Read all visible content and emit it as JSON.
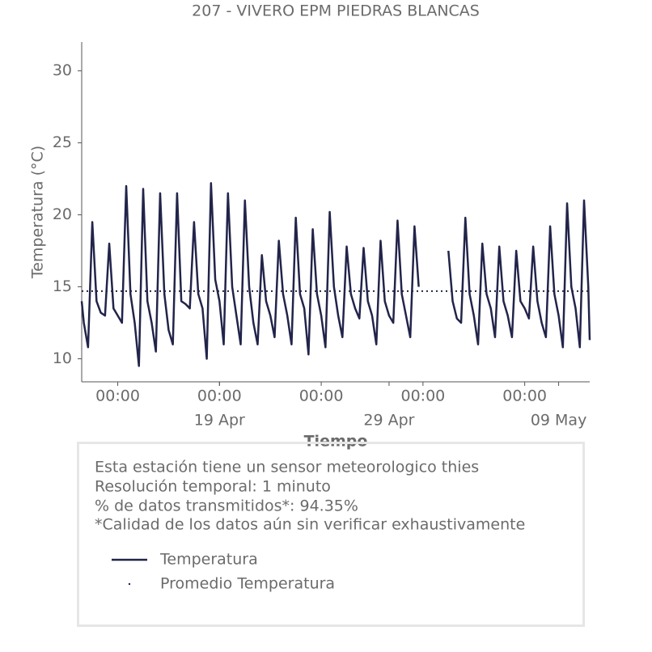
{
  "chart_data": {
    "type": "line",
    "title": "207 - VIVERO EPM PIEDRAS BLANCAS",
    "xlabel": "Tiempo",
    "ylabel": "Temperatura (°C)",
    "xlim": [
      "Apr 10 21:00",
      "May 10 20:00"
    ],
    "ylim": [
      8.4,
      32
    ],
    "yticks": [
      10,
      15,
      20,
      25,
      30
    ],
    "xticks": [
      {
        "value": "Apr 13 00:00",
        "label": "00:00"
      },
      {
        "value": "Apr 19 00:00",
        "label": "00:00"
      },
      {
        "value": "Apr 25 00:00",
        "label": "00:00"
      },
      {
        "value": "May 01 00:00",
        "label": "00:00"
      },
      {
        "value": "May 07 00:00",
        "label": "00:00"
      }
    ],
    "xticks_major": [
      {
        "value": "Apr 19 00:00",
        "label": "19 Apr"
      },
      {
        "value": "Apr 29 00:00",
        "label": "29 Apr"
      },
      {
        "value": "May 09 00:00",
        "label": "09 May"
      }
    ],
    "x": [
      "Apr 10 21:00",
      "Apr 11 00:00",
      "Apr 11 06:00",
      "Apr 11 12:00",
      "Apr 11 18:00",
      "Apr 12 00:00",
      "Apr 12 06:00",
      "Apr 12 12:00",
      "Apr 12 18:00",
      "Apr 13 00:00",
      "Apr 13 06:00",
      "Apr 13 12:00",
      "Apr 13 18:00",
      "Apr 14 00:00",
      "Apr 14 06:00",
      "Apr 14 12:00",
      "Apr 14 18:00",
      "Apr 15 00:00",
      "Apr 15 06:00",
      "Apr 15 12:00",
      "Apr 15 18:00",
      "Apr 16 00:00",
      "Apr 16 06:00",
      "Apr 16 12:00",
      "Apr 16 18:00",
      "Apr 17 00:00",
      "Apr 17 06:00",
      "Apr 17 12:00",
      "Apr 17 18:00",
      "Apr 18 00:00",
      "Apr 18 06:00",
      "Apr 18 12:00",
      "Apr 18 18:00",
      "Apr 19 00:00",
      "Apr 19 06:00",
      "Apr 19 12:00",
      "Apr 19 18:00",
      "Apr 20 00:00",
      "Apr 20 06:00",
      "Apr 20 12:00",
      "Apr 20 18:00",
      "Apr 21 00:00",
      "Apr 21 06:00",
      "Apr 21 12:00",
      "Apr 21 18:00",
      "Apr 22 00:00",
      "Apr 22 06:00",
      "Apr 22 12:00",
      "Apr 22 18:00",
      "Apr 23 00:00",
      "Apr 23 06:00",
      "Apr 23 12:00",
      "Apr 23 18:00",
      "Apr 24 00:00",
      "Apr 24 06:00",
      "Apr 24 12:00",
      "Apr 24 18:00",
      "Apr 25 00:00",
      "Apr 25 06:00",
      "Apr 25 12:00",
      "Apr 25 18:00",
      "Apr 26 00:00",
      "Apr 26 06:00",
      "Apr 26 12:00",
      "Apr 26 18:00",
      "Apr 27 00:00",
      "Apr 27 06:00",
      "Apr 27 12:00",
      "Apr 27 18:00",
      "Apr 28 00:00",
      "Apr 28 06:00",
      "Apr 28 12:00",
      "Apr 28 18:00",
      "Apr 29 00:00",
      "Apr 29 06:00",
      "Apr 29 12:00",
      "Apr 29 18:00",
      "Apr 30 00:00",
      "Apr 30 06:00",
      "Apr 30 12:00",
      "Apr 30 18:00",
      "May 01 00:00",
      "May 01 06:00",
      "May 01 12:00",
      "May 01 18:00",
      "May 02 00:00",
      "May 02 06:00",
      "May 02 12:00",
      "May 02 18:00",
      "May 03 00:00",
      "May 03 06:00",
      "May 03 12:00",
      "May 03 18:00",
      "May 04 00:00",
      "May 04 06:00",
      "May 04 12:00",
      "May 04 18:00",
      "May 05 00:00",
      "May 05 06:00",
      "May 05 12:00",
      "May 05 18:00",
      "May 06 00:00",
      "May 06 06:00",
      "May 06 12:00",
      "May 06 18:00",
      "May 07 00:00",
      "May 07 06:00",
      "May 07 12:00",
      "May 07 18:00",
      "May 08 00:00",
      "May 08 06:00",
      "May 08 12:00",
      "May 08 18:00",
      "May 09 00:00",
      "May 09 06:00",
      "May 09 12:00",
      "May 09 18:00",
      "May 10 00:00",
      "May 10 06:00",
      "May 10 12:00",
      "May 10 18:00",
      "May 10 20:00"
    ],
    "series": [
      {
        "name": "Temperatura",
        "color": "#22244a",
        "values": [
          14.0,
          12.5,
          10.8,
          19.5,
          14.0,
          13.2,
          13.0,
          18.0,
          13.5,
          13.0,
          12.5,
          22.0,
          14.5,
          12.5,
          9.5,
          21.8,
          14.0,
          12.5,
          10.5,
          21.5,
          14.5,
          12.0,
          11.0,
          21.5,
          14.0,
          13.8,
          13.5,
          19.5,
          14.5,
          13.5,
          10.0,
          22.2,
          15.5,
          14.0,
          11.0,
          21.5,
          15.0,
          13.0,
          11.0,
          21.0,
          15.0,
          12.5,
          11.0,
          17.2,
          14.0,
          13.0,
          11.5,
          18.2,
          14.5,
          13.0,
          11.0,
          19.8,
          14.5,
          13.5,
          10.3,
          19.0,
          14.5,
          13.0,
          10.8,
          20.2,
          15.0,
          13.0,
          11.5,
          17.8,
          14.5,
          13.5,
          12.8,
          17.7,
          14.0,
          13.0,
          11.0,
          18.2,
          14.0,
          13.0,
          12.5,
          19.6,
          14.5,
          13.0,
          11.5,
          19.2,
          15.0,
          null,
          null,
          null,
          null,
          null,
          null,
          17.5,
          14.0,
          12.8,
          12.5,
          19.8,
          14.5,
          13.0,
          11.0,
          18.0,
          14.5,
          13.5,
          11.5,
          17.8,
          14.0,
          13.0,
          11.5,
          17.5,
          14.0,
          13.5,
          12.8,
          17.8,
          14.0,
          12.5,
          11.5,
          19.2,
          14.5,
          13.0,
          10.8,
          20.8,
          15.0,
          13.5,
          10.8,
          21.0,
          15.0,
          11.3
        ]
      },
      {
        "name": "Promedio Temperatura",
        "color": "#22244a",
        "mean": 14.7
      }
    ],
    "notes": [
      "Esta estación tiene un sensor meteorologico thies",
      "Resolución temporal: 1 minuto",
      "% de datos transmitidos*: 94.35%",
      "*Calidad de los datos aún sin verificar exhaustivamente"
    ]
  }
}
